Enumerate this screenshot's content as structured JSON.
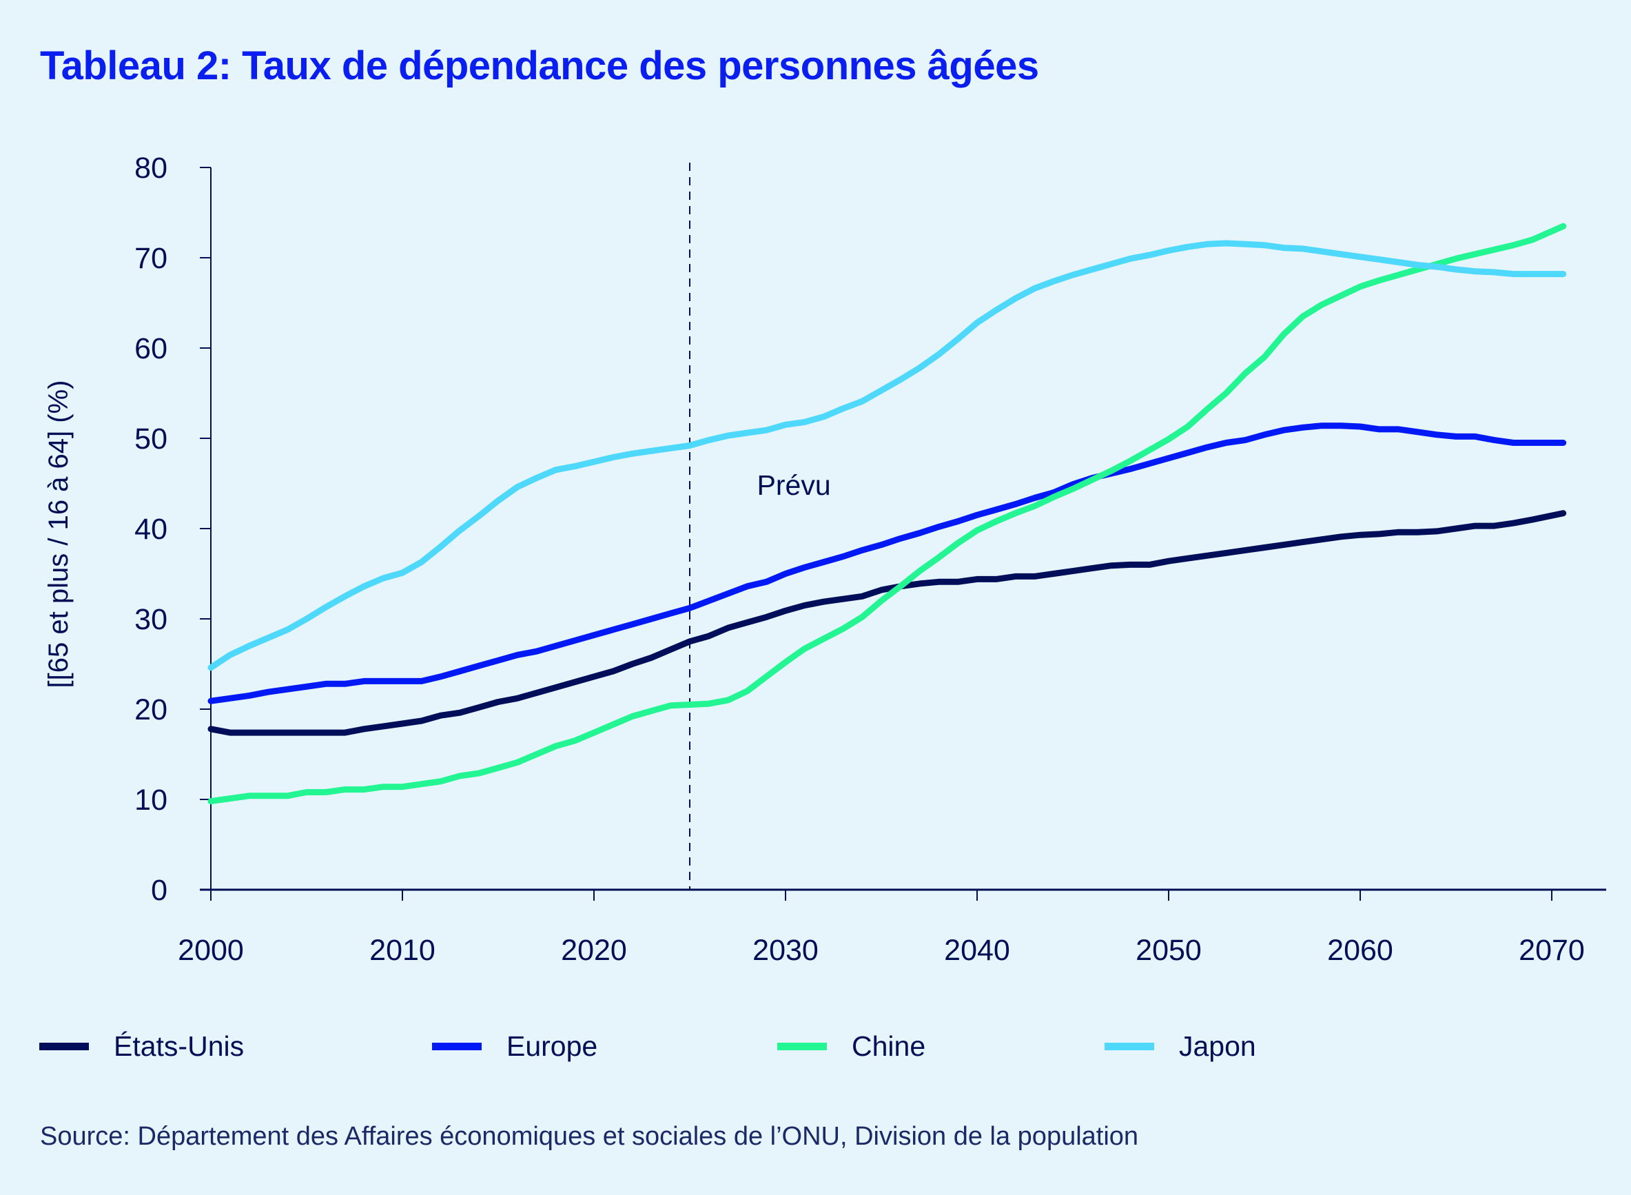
{
  "title": "Tableau 2: Taux de dépendance des personnes âgées",
  "source": "Source: Département des Affaires économiques et sociales de l’ONU, Division de la population",
  "chart_data": {
    "type": "line",
    "title": "Tableau 2: Taux de dépendance des personnes âgées",
    "xlabel": "",
    "ylabel": "[[65 et plus / 16 à 64] (%)",
    "xlim": [
      2000,
      2072.8
    ],
    "ylim": [
      0,
      80
    ],
    "xticks": [
      2000,
      2010,
      2020,
      2030,
      2040,
      2050,
      2060,
      2070
    ],
    "yticks": [
      0,
      10,
      20,
      30,
      40,
      50,
      60,
      70,
      80
    ],
    "grid": false,
    "legend_position": "bottom",
    "annotations": [
      {
        "type": "vline",
        "x": 2025,
        "style": "dashed",
        "color": "#030F55"
      },
      {
        "type": "text",
        "text": "Prévu",
        "x": 2029.3,
        "y": 44.8
      }
    ],
    "x": [
      2000,
      2001,
      2002,
      2003,
      2004,
      2005,
      2006,
      2007,
      2008,
      2009,
      2010,
      2011,
      2012,
      2013,
      2014,
      2015,
      2016,
      2017,
      2018,
      2019,
      2020,
      2021,
      2022,
      2023,
      2024,
      2025,
      2026,
      2027,
      2028,
      2029,
      2030,
      2031,
      2032,
      2033,
      2034,
      2035,
      2036,
      2037,
      2038,
      2039,
      2040,
      2041,
      2042,
      2043,
      2044,
      2045,
      2046,
      2047,
      2048,
      2049,
      2050,
      2051,
      2052,
      2053,
      2054,
      2055,
      2056,
      2057,
      2058,
      2059,
      2060,
      2061,
      2062,
      2063,
      2064,
      2065,
      2066,
      2067,
      2068,
      2069,
      2070
    ],
    "series": [
      {
        "name": "États-Unis",
        "color": "#000E5A",
        "values": [
          17.8,
          17.4,
          17.4,
          17.4,
          17.4,
          17.4,
          17.4,
          17.4,
          17.8,
          18.1,
          18.4,
          18.7,
          19.3,
          19.6,
          20.2,
          20.8,
          21.2,
          21.8,
          22.4,
          23.0,
          23.6,
          24.2,
          25.0,
          25.7,
          26.6,
          27.5,
          28.1,
          29.0,
          29.6,
          30.2,
          30.9,
          31.5,
          31.9,
          32.2,
          32.5,
          33.2,
          33.6,
          33.9,
          34.1,
          34.1,
          34.4,
          34.4,
          34.7,
          34.7,
          35.0,
          35.3,
          35.6,
          35.9,
          36.0,
          36.0,
          36.4,
          36.7,
          37.0,
          37.3,
          37.6,
          37.9,
          38.2,
          38.5,
          38.8,
          39.1,
          39.3,
          39.4,
          39.6,
          39.6,
          39.7,
          40.0,
          40.3,
          40.3,
          40.6,
          41.0,
          41.7
        ]
      },
      {
        "name": "Europe",
        "color": "#0019F5",
        "values": [
          20.9,
          21.2,
          21.5,
          21.9,
          22.2,
          22.5,
          22.8,
          22.8,
          23.1,
          23.1,
          23.1,
          23.1,
          23.6,
          24.2,
          24.8,
          25.4,
          26.0,
          26.4,
          27.0,
          27.6,
          28.2,
          28.8,
          29.4,
          30.0,
          30.6,
          31.2,
          32.0,
          32.8,
          33.6,
          34.1,
          35.0,
          35.7,
          36.3,
          36.9,
          37.6,
          38.2,
          38.9,
          39.5,
          40.2,
          40.8,
          41.5,
          42.1,
          42.7,
          43.4,
          44.0,
          44.9,
          45.6,
          46.1,
          46.6,
          47.2,
          47.8,
          48.4,
          49.0,
          49.5,
          49.8,
          50.4,
          50.9,
          51.2,
          51.4,
          51.4,
          51.3,
          51.0,
          51.0,
          50.7,
          50.4,
          50.2,
          50.2,
          49.8,
          49.5,
          49.5,
          49.5
        ]
      },
      {
        "name": "Chine",
        "color": "#22F592",
        "values": [
          9.8,
          10.1,
          10.4,
          10.4,
          10.4,
          10.8,
          10.8,
          11.1,
          11.1,
          11.4,
          11.4,
          11.7,
          12.0,
          12.6,
          12.9,
          13.5,
          14.1,
          15.0,
          15.9,
          16.5,
          17.4,
          18.3,
          19.2,
          19.8,
          20.4,
          20.5,
          20.6,
          21.0,
          22.0,
          23.6,
          25.2,
          26.7,
          27.8,
          28.9,
          30.2,
          32.0,
          33.6,
          35.3,
          36.8,
          38.4,
          39.8,
          40.8,
          41.7,
          42.5,
          43.5,
          44.4,
          45.4,
          46.4,
          47.5,
          48.7,
          49.9,
          51.3,
          53.2,
          55.0,
          57.2,
          59.0,
          61.5,
          63.5,
          64.8,
          65.8,
          66.8,
          67.5,
          68.1,
          68.7,
          69.3,
          69.9,
          70.4,
          70.9,
          71.4,
          72.0,
          73.5
        ]
      },
      {
        "name": "Japon",
        "color": "#4DD8FC",
        "values": [
          24.6,
          26.0,
          27.0,
          27.9,
          28.8,
          30.0,
          31.3,
          32.5,
          33.6,
          34.5,
          35.1,
          36.3,
          38.0,
          39.8,
          41.4,
          43.1,
          44.6,
          45.6,
          46.5,
          46.9,
          47.4,
          47.9,
          48.3,
          48.6,
          48.9,
          49.2,
          49.8,
          50.3,
          50.6,
          50.9,
          51.5,
          51.8,
          52.4,
          53.3,
          54.1,
          55.3,
          56.5,
          57.8,
          59.3,
          61.0,
          62.8,
          64.2,
          65.5,
          66.6,
          67.4,
          68.1,
          68.7,
          69.3,
          69.9,
          70.3,
          70.8,
          71.2,
          71.5,
          71.6,
          71.5,
          71.4,
          71.1,
          71.0,
          70.7,
          70.4,
          70.1,
          69.8,
          69.5,
          69.2,
          69.0,
          68.7,
          68.5,
          68.4,
          68.2,
          68.2,
          68.2
        ]
      }
    ]
  },
  "legend": [
    {
      "label": "États-Unis",
      "color": "#000E5A"
    },
    {
      "label": "Europe",
      "color": "#0019F5"
    },
    {
      "label": "Chine",
      "color": "#22F592"
    },
    {
      "label": "Japon",
      "color": "#4DD8FC"
    }
  ]
}
